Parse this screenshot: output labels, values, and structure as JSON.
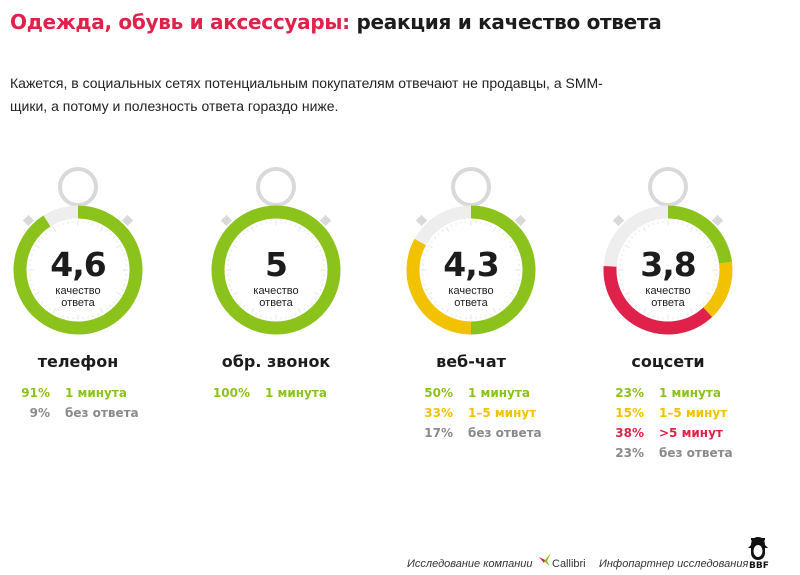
{
  "header": {
    "title_accent": "Одежда, обувь и аксессуары:",
    "title_rest": "реакция и качество ответа",
    "subtitle": "Кажется, в социальных сетях потенциальным покупателям отвечают не продавцы, а SMM-щики, а потому и полезность ответа гораздо ниже."
  },
  "colors": {
    "accent": "#e0224a",
    "one_minute": "#8cc21c",
    "one_to_five": "#f2c200",
    "over_five": "#e0224a",
    "no_answer": "#8a8a8a",
    "stopwatch": "#d9d9d9"
  },
  "chart_data": [
    {
      "type": "pie",
      "channel": "телефон",
      "score": "4,6",
      "score_label": "качество ответа",
      "segments": [
        {
          "pct_label": "91%",
          "value": 91,
          "label": "1 минута",
          "color_key": "one_minute"
        },
        {
          "pct_label": "9%",
          "value": 9,
          "label": "без ответа",
          "color_key": "no_answer"
        }
      ]
    },
    {
      "type": "pie",
      "channel": "обр. звонок",
      "score": "5",
      "score_label": "качество ответа",
      "segments": [
        {
          "pct_label": "100%",
          "value": 100,
          "label": "1 минута",
          "color_key": "one_minute"
        }
      ]
    },
    {
      "type": "pie",
      "channel": "веб-чат",
      "score": "4,3",
      "score_label": "качество ответа",
      "segments": [
        {
          "pct_label": "50%",
          "value": 50,
          "label": "1 минута",
          "color_key": "one_minute"
        },
        {
          "pct_label": "33%",
          "value": 33,
          "label": "1–5 минут",
          "color_key": "one_to_five"
        },
        {
          "pct_label": "17%",
          "value": 17,
          "label": "без ответа",
          "color_key": "no_answer"
        }
      ]
    },
    {
      "type": "pie",
      "channel": "соцсети",
      "score": "3,8",
      "score_label": "качество ответа",
      "segments": [
        {
          "pct_label": "23%",
          "value": 23,
          "label": "1 минута",
          "color_key": "one_minute"
        },
        {
          "pct_label": "15%",
          "value": 15,
          "label": "1–5 минут",
          "color_key": "one_to_five"
        },
        {
          "pct_label": "38%",
          "value": 38,
          "label": ">5 минут",
          "color_key": "over_five"
        },
        {
          "pct_label": "23%",
          "value": 23,
          "label": "без ответа",
          "color_key": "no_answer"
        }
      ]
    }
  ],
  "footer": {
    "research_by": "Исследование компании",
    "company": "Callibri",
    "info_partner": "Инфопартнер исследования",
    "partner_logo": "BBF"
  },
  "icons": {
    "company_logo": "callibri-bird-icon",
    "partner_logo": "bbf-penguin-icon",
    "gauge": "stopwatch-icon"
  }
}
